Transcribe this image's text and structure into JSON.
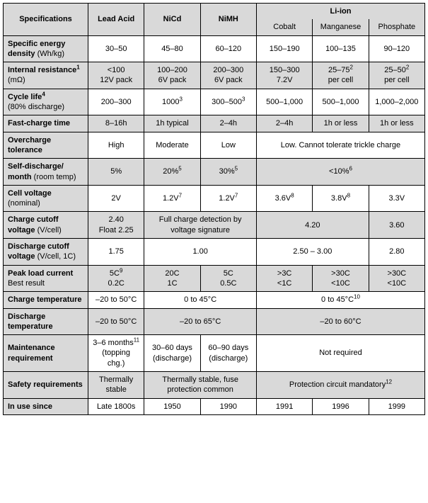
{
  "colors": {
    "band": "#d9d9d9",
    "border": "#000000",
    "text": "#000000",
    "bg": "#ffffff"
  },
  "header": {
    "spec": "Specifications",
    "leadAcid": "Lead Acid",
    "nicd": "NiCd",
    "nimh": "NiMH",
    "liion": "Li-ion",
    "cobalt": "Cobalt",
    "manganese": "Manganese",
    "phosphate": "Phosphate"
  },
  "rows": {
    "energy": {
      "label": "Specific energy density",
      "sub": "(Wh/kg)",
      "la": "30–50",
      "nicd": "45–80",
      "nimh": "60–120",
      "co": "150–190",
      "mn": "100–135",
      "ph": "90–120"
    },
    "ir": {
      "label": "Internal resistance",
      "sup": "1",
      "sub": "(mΩ)",
      "la1": "<100",
      "la2": "12V pack",
      "nicd1": "100–200",
      "nicd2": "6V pack",
      "nimh1": "200–300",
      "nimh2": "6V pack",
      "co1": "150–300",
      "co2": "7.2V",
      "mn1": "25–75",
      "mnSup": "2",
      "mn2": "per cell",
      "ph1": "25–50",
      "phSup": "2",
      "ph2": "per cell"
    },
    "cycle": {
      "label": "Cycle life",
      "sup": "4",
      "sub": "(80% discharge)",
      "la": "200–300",
      "nicd": "1000",
      "nicdSup": "3",
      "nimh": "300–500",
      "nimhSup": "3",
      "co": "500–1,000",
      "mn": "500–1,000",
      "ph": "1,000–2,000"
    },
    "fast": {
      "label": "Fast-charge time",
      "la": "8–16h",
      "nicd": "1h typical",
      "nimh": "2–4h",
      "co": "2–4h",
      "mn": "1h or less",
      "ph": "1h or less"
    },
    "over": {
      "label": "Overcharge tolerance",
      "la": "High",
      "nicd": "Moderate",
      "nimh": "Low",
      "li": "Low. Cannot tolerate trickle charge"
    },
    "selfd": {
      "label": "Self-discharge/ month",
      "sub": "(room temp)",
      "la": "5%",
      "nicd": "20%",
      "nicdSup": "5",
      "nimh": "30%",
      "nimhSup": "5",
      "li": "<10%",
      "liSup": "6"
    },
    "cellv": {
      "label": "Cell voltage",
      "sub": "(nominal)",
      "la": "2V",
      "nicd": "1.2V",
      "nicdSup": "7",
      "nimh": "1.2V",
      "nimhSup": "7",
      "co": "3.6V",
      "coSup": "8",
      "mn": "3.8V",
      "mnSup": "8",
      "ph": "3.3V"
    },
    "ccv": {
      "label": "Charge cutoff voltage",
      "sub": "(V/cell)",
      "la1": "2.40",
      "la2": "Float 2.25",
      "ni": "Full charge detection by voltage signature",
      "comn": "4.20",
      "ph": "3.60"
    },
    "dcv": {
      "label": "Discharge cutoff voltage",
      "sub": "(V/cell, 1C)",
      "la": "1.75",
      "ni": "1.00",
      "comn": "2.50 – 3.00",
      "ph": "2.80"
    },
    "peak": {
      "label": "Peak load current",
      "sub": "Best result",
      "la1": "5C",
      "laSup": "9",
      "la2": "0.2C",
      "nicd1": "20C",
      "nicd2": "1C",
      "nimh1": "5C",
      "nimh2": "0.5C",
      "co1": ">3C",
      "co2": "<1C",
      "mn1": ">30C",
      "mn2": "<10C",
      "ph1": ">30C",
      "ph2": "<10C"
    },
    "ctemp": {
      "label": "Charge temperature",
      "la": "–20 to 50°C",
      "ni": "0 to 45°C",
      "li": "0 to 45°C",
      "liSup": "10"
    },
    "dtemp": {
      "label": "Discharge temperature",
      "la": "–20 to 50°C",
      "ni": "–20 to 65°C",
      "li": "–20 to 60°C"
    },
    "maint": {
      "label": "Maintenance requirement",
      "la1": "3–6 months",
      "laSup": "11",
      "la2": "(topping chg.)",
      "nicd1": "30–60 days",
      "nicd2": "(discharge)",
      "nimh1": "60–90 days",
      "nimh2": "(discharge)",
      "li": "Not required"
    },
    "safety": {
      "label": "Safety requirements",
      "la": "Thermally stable",
      "ni": "Thermally stable, fuse protection common",
      "li": "Protection circuit mandatory",
      "liSup": "12"
    },
    "since": {
      "label": "In use since",
      "la": "Late 1800s",
      "nicd": "1950",
      "nimh": "1990",
      "co": "1991",
      "mn": "1996",
      "ph": "1999"
    }
  }
}
